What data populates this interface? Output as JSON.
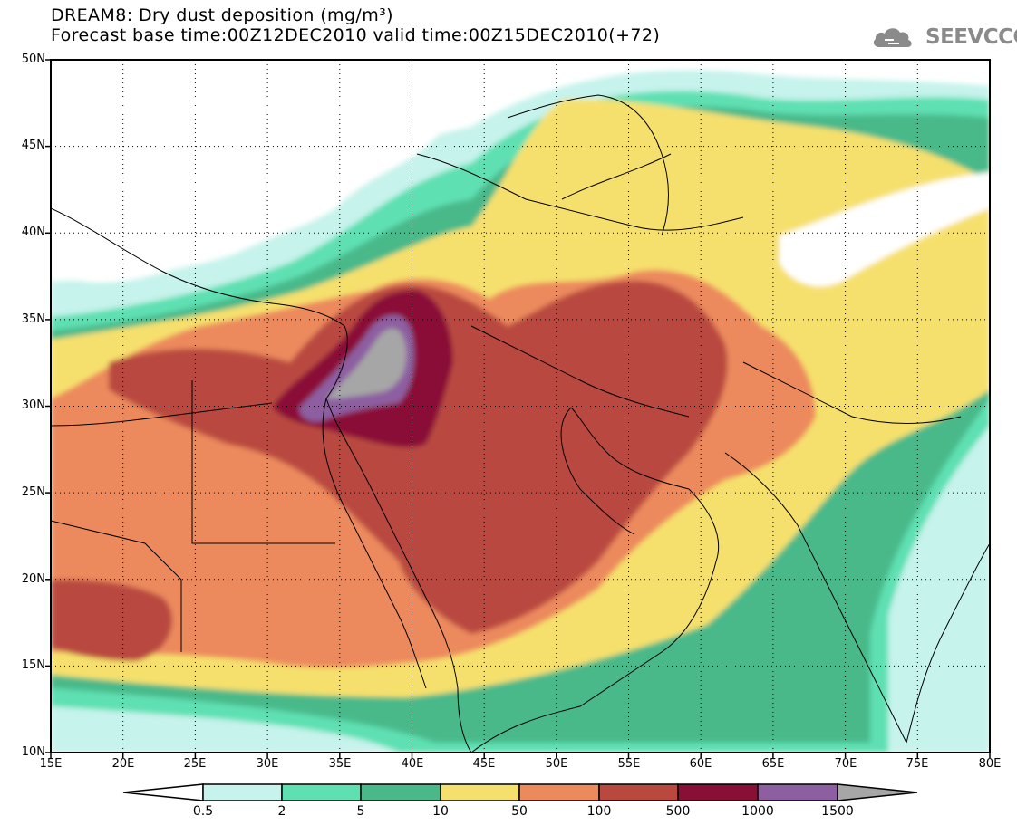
{
  "title": {
    "line1": "DREAM8: Dry dust deposition (mg/m³)",
    "line2": "Forecast base time:00Z12DEC2010 valid time:00Z15DEC2010(+72)"
  },
  "logo": {
    "text": "SEEVCCC",
    "icon": "cloud-icon"
  },
  "map": {
    "lat_labels": [
      "50N",
      "45N",
      "40N",
      "35N",
      "30N",
      "25N",
      "20N",
      "15N",
      "10N"
    ],
    "lon_labels": [
      "15E",
      "20E",
      "25E",
      "30E",
      "35E",
      "40E",
      "45E",
      "50E",
      "55E",
      "60E",
      "65E",
      "70E",
      "75E",
      "80E"
    ],
    "lat_range": [
      10,
      50
    ],
    "lon_range": [
      15,
      80
    ]
  },
  "colorbar": {
    "levels": [
      "0.5",
      "2",
      "5",
      "10",
      "50",
      "100",
      "500",
      "1000",
      "1500"
    ],
    "colors": [
      "#c6f3ec",
      "#5fe0b3",
      "#4ab98a",
      "#f6e06d",
      "#ec8a5d",
      "#b9483f",
      "#8a0f37",
      "#8d5fa1",
      "#a6a6a6"
    ],
    "under_color": "#ffffff"
  }
}
